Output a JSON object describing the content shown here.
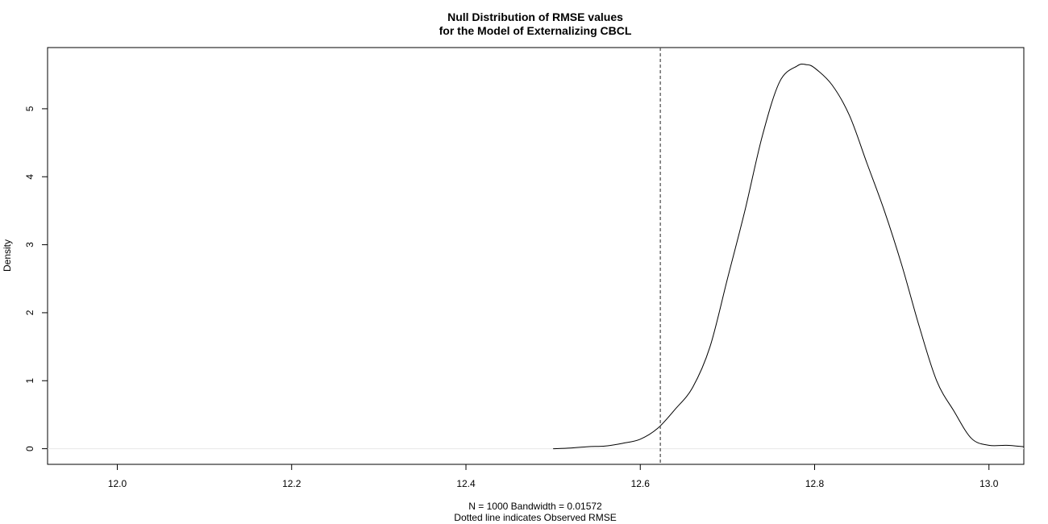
{
  "chart_data": {
    "type": "line",
    "title_line1": "Null Distribution of RMSE values",
    "title_line2": "for the Model of Externalizing CBCL",
    "xlabel_line1": "N = 1000   Bandwidth = 0.01572",
    "xlabel_line2": "Dotted line indicates Observed RMSE",
    "ylabel": "Density",
    "xlim": [
      11.92,
      13.04
    ],
    "ylim": [
      -0.23,
      5.9
    ],
    "x_ticks": [
      {
        "value": 12.0,
        "label": "12.0"
      },
      {
        "value": 12.2,
        "label": "12.2"
      },
      {
        "value": 12.4,
        "label": "12.4"
      },
      {
        "value": 12.6,
        "label": "12.6"
      },
      {
        "value": 12.8,
        "label": "12.8"
      },
      {
        "value": 13.0,
        "label": "13.0"
      }
    ],
    "y_ticks": [
      {
        "value": 0,
        "label": "0"
      },
      {
        "value": 1,
        "label": "1"
      },
      {
        "value": 2,
        "label": "2"
      },
      {
        "value": 3,
        "label": "3"
      },
      {
        "value": 4,
        "label": "4"
      },
      {
        "value": 5,
        "label": "5"
      }
    ],
    "observed_rmse": 12.623,
    "baseline_y": 0,
    "series": [
      {
        "x": [
          12.5,
          12.52,
          12.54,
          12.56,
          12.58,
          12.6,
          12.62,
          12.64,
          12.66,
          12.68,
          12.7,
          12.72,
          12.74,
          12.76,
          12.78,
          12.79,
          12.8,
          12.82,
          12.84,
          12.86,
          12.88,
          12.9,
          12.92,
          12.94,
          12.96,
          12.98,
          13.0,
          13.02,
          13.04
        ],
        "y": [
          0.0,
          0.01,
          0.03,
          0.04,
          0.08,
          0.14,
          0.3,
          0.58,
          0.9,
          1.5,
          2.5,
          3.5,
          4.6,
          5.4,
          5.63,
          5.65,
          5.6,
          5.35,
          4.9,
          4.2,
          3.5,
          2.7,
          1.8,
          1.0,
          0.55,
          0.15,
          0.05,
          0.05,
          0.03
        ]
      }
    ]
  }
}
